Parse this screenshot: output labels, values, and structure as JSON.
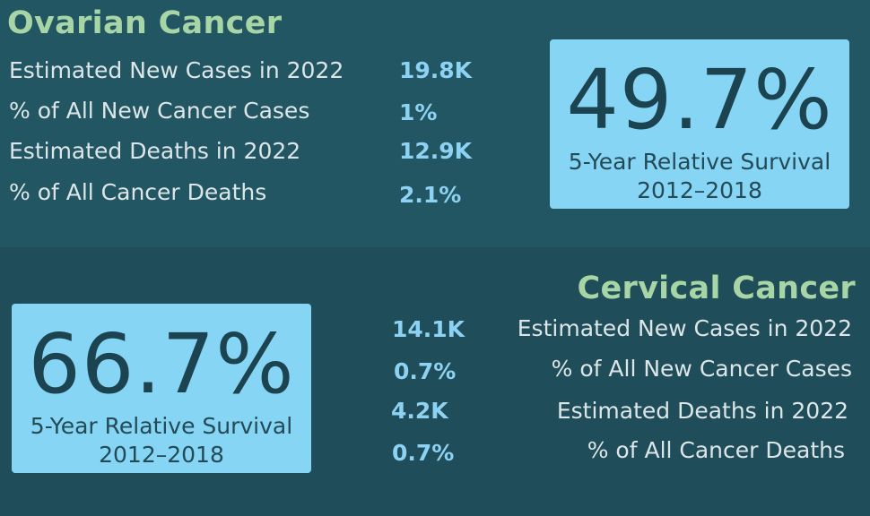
{
  "ovarian": {
    "title": "Ovarian Cancer",
    "stats": [
      {
        "label": "Estimated New Cases in 2022",
        "value": "19.8K"
      },
      {
        "label": "% of All New Cancer Cases",
        "value": "1%"
      },
      {
        "label": "Estimated Deaths in 2022",
        "value": "12.9K"
      },
      {
        "label": "% of All Cancer Deaths",
        "value": "2.1%"
      }
    ],
    "survival": {
      "percent": "49.7%",
      "label": "5-Year Relative Survival",
      "period": "2012–2018"
    }
  },
  "cervical": {
    "title": "Cervical Cancer",
    "stats": [
      {
        "label": "Estimated New Cases in 2022",
        "value": "14.1K"
      },
      {
        "label": "% of All New Cancer Cases",
        "value": "0.7%"
      },
      {
        "label": "Estimated Deaths in 2022",
        "value": "4.2K"
      },
      {
        "label": "% of All Cancer Deaths",
        "value": "0.7%"
      }
    ],
    "survival": {
      "percent": "66.7%",
      "label": "5-Year Relative Survival",
      "period": "2012–2018"
    }
  },
  "colors": {
    "top_background": "#225663",
    "bottom_background": "#1f4d59",
    "title_green": "#a8d5a5",
    "value_blue": "#8dd2f3",
    "box_blue": "#86d5f4"
  }
}
